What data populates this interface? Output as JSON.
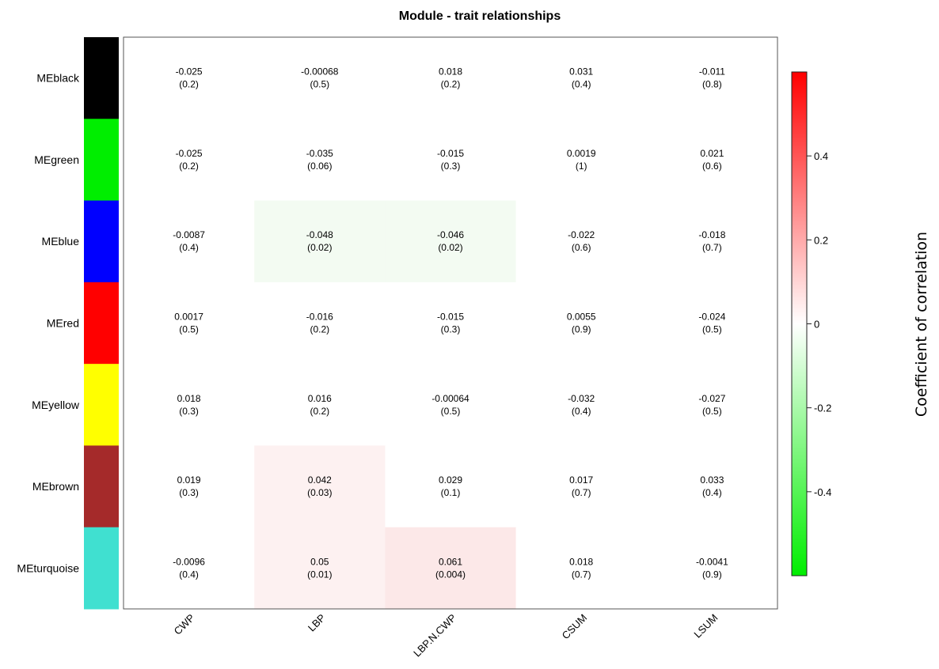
{
  "chart_data": {
    "type": "heatmap",
    "title": "Module - trait relationships",
    "rows": [
      "MEblack",
      "MEgreen",
      "MEblue",
      "MEred",
      "MEyellow",
      "MEbrown",
      "MEturquoise"
    ],
    "row_colors": [
      "#000000",
      "#00ee00",
      "#0000ff",
      "#ff0000",
      "#ffff00",
      "#a52a2a",
      "#40e0d0"
    ],
    "columns": [
      "CWP",
      "LBP",
      "LBP.N.CWP",
      "CSUM",
      "LSUM"
    ],
    "values": [
      [
        -0.025,
        -0.00068,
        0.018,
        0.031,
        -0.011
      ],
      [
        -0.025,
        -0.035,
        -0.015,
        0.0019,
        0.021
      ],
      [
        -0.0087,
        -0.048,
        -0.046,
        -0.022,
        -0.018
      ],
      [
        0.0017,
        -0.016,
        -0.015,
        0.0055,
        -0.024
      ],
      [
        0.018,
        0.016,
        -0.00064,
        -0.032,
        -0.027
      ],
      [
        0.019,
        0.042,
        0.029,
        0.017,
        0.033
      ],
      [
        -0.0096,
        0.05,
        0.061,
        0.018,
        -0.0041
      ]
    ],
    "value_labels": [
      [
        "-0.025",
        "-0.00068",
        "0.018",
        "0.031",
        "-0.011"
      ],
      [
        "-0.025",
        "-0.035",
        "-0.015",
        "0.0019",
        "0.021"
      ],
      [
        "-0.0087",
        "-0.048",
        "-0.046",
        "-0.022",
        "-0.018"
      ],
      [
        "0.0017",
        "-0.016",
        "-0.015",
        "0.0055",
        "-0.024"
      ],
      [
        "0.018",
        "0.016",
        "-0.00064",
        "-0.032",
        "-0.027"
      ],
      [
        "0.019",
        "0.042",
        "0.029",
        "0.017",
        "0.033"
      ],
      [
        "-0.0096",
        "0.05",
        "0.061",
        "0.018",
        "-0.0041"
      ]
    ],
    "p_labels": [
      [
        "(0.2)",
        "(0.5)",
        "(0.2)",
        "(0.4)",
        "(0.8)"
      ],
      [
        "(0.2)",
        "(0.06)",
        "(0.3)",
        "(1)",
        "(0.6)"
      ],
      [
        "(0.4)",
        "(0.02)",
        "(0.02)",
        "(0.6)",
        "(0.7)"
      ],
      [
        "(0.5)",
        "(0.2)",
        "(0.3)",
        "(0.9)",
        "(0.5)"
      ],
      [
        "(0.3)",
        "(0.2)",
        "(0.5)",
        "(0.4)",
        "(0.5)"
      ],
      [
        "(0.3)",
        "(0.03)",
        "(0.1)",
        "(0.7)",
        "(0.4)"
      ],
      [
        "(0.4)",
        "(0.01)",
        "(0.004)",
        "(0.7)",
        "(0.9)"
      ]
    ],
    "cell_fills": [
      [
        "#ffffff",
        "#ffffff",
        "#ffffff",
        "#ffffff",
        "#ffffff"
      ],
      [
        "#ffffff",
        "#ffffff",
        "#ffffff",
        "#ffffff",
        "#ffffff"
      ],
      [
        "#ffffff",
        "#f3fbf2",
        "#f3fbf2",
        "#ffffff",
        "#ffffff"
      ],
      [
        "#ffffff",
        "#ffffff",
        "#ffffff",
        "#ffffff",
        "#ffffff"
      ],
      [
        "#ffffff",
        "#ffffff",
        "#ffffff",
        "#ffffff",
        "#ffffff"
      ],
      [
        "#ffffff",
        "#fdf1f1",
        "#ffffff",
        "#ffffff",
        "#ffffff"
      ],
      [
        "#ffffff",
        "#fdf1f1",
        "#fce8e8",
        "#ffffff",
        "#ffffff"
      ]
    ],
    "colorscale": {
      "low": "#00ee00",
      "mid": "#ffffff",
      "high": "#ff0000",
      "range": [
        -0.6,
        0.6
      ],
      "ticks": [
        0.4,
        0.2,
        0,
        -0.2,
        -0.4
      ],
      "tick_labels": [
        "0.4",
        "0.2",
        "0",
        "-0.2",
        "-0.4"
      ],
      "title": "Coefficient of correlation"
    }
  }
}
